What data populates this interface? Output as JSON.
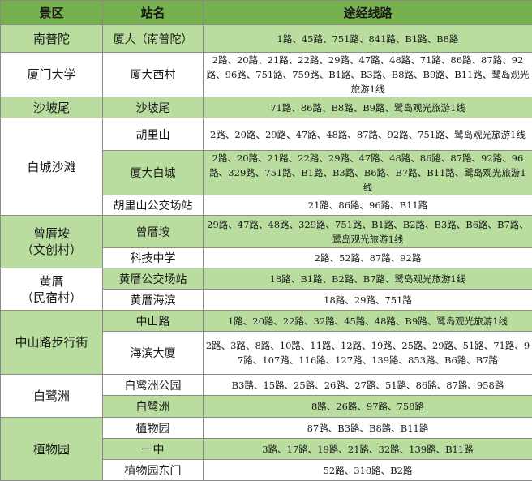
{
  "table": {
    "headers": [
      "景区",
      "站名",
      "途经线路"
    ],
    "areas": [
      {
        "name": [
          "南普陀"
        ],
        "stations": [
          {
            "name": "厦大（南普陀）",
            "routes": "1路、45路、751路、841路、B1路、B8路"
          }
        ]
      },
      {
        "name": [
          "厦门大学"
        ],
        "stations": [
          {
            "name": "厦大西村",
            "routes": "2路、20路、21路、22路、29路、47路、48路、71路、86路、87路、92路、96路、751路、759路、B1路、B3路、B8路、B9路、B11路、鹭岛观光旅游1线"
          }
        ]
      },
      {
        "name": [
          "沙坡尾"
        ],
        "stations": [
          {
            "name": "沙坡尾",
            "routes": "71路、86路、B8路、B9路、鹭岛观光旅游1线"
          }
        ]
      },
      {
        "name": [
          "白城沙滩"
        ],
        "stations": [
          {
            "name": "胡里山",
            "routes": "2路、20路、29路、47路、48路、87路、92路、751路、鹭岛观光旅游1线"
          },
          {
            "name": "厦大白城",
            "routes": "2路、20路、21路、22路、29路、47路、48路、86路、87路、92路、96路、329路、751路、B1路、B3路、B6路、B7路、B11路、鹭岛观光旅游1线"
          },
          {
            "name": "胡里山公交场站",
            "routes": "21路、86路、96路、B11路"
          }
        ]
      },
      {
        "name": [
          "曾厝垵",
          "（文创村）"
        ],
        "stations": [
          {
            "name": "曾厝垵",
            "routes": "29路、47路、48路、329路、751路、B1路、B2路、B3路、B6路、B7路、鹭岛观光旅游1线"
          },
          {
            "name": "科技中学",
            "routes": "2路、52路、87路、92路"
          }
        ]
      },
      {
        "name": [
          "黄厝",
          "（民宿村）"
        ],
        "stations": [
          {
            "name": "黄厝公交场站",
            "routes": "18路、B1路、B2路、B7路、鹭岛观光旅游1线"
          },
          {
            "name": "黄厝海滨",
            "routes": "18路、29路、751路"
          }
        ]
      },
      {
        "name": [
          "中山路步行街"
        ],
        "stations": [
          {
            "name": "中山路",
            "routes": "1路、20路、22路、32路、45路、48路、B9路、鹭岛观光旅游1线"
          },
          {
            "name": "海滨大厦",
            "routes": "2路、3路、8路、10路、11路、12路、19路、25路、29路、51路、71路、97路、107路、116路、127路、139路、853路、B6路、B7路"
          }
        ]
      },
      {
        "name": [
          "白鹭洲"
        ],
        "stations": [
          {
            "name": "白鹭洲公园",
            "routes": "B3路、15路、25路、26路、27路、51路、86路、87路、958路"
          },
          {
            "name": "白鹭洲",
            "routes": "8路、26路、97路、758路"
          }
        ]
      },
      {
        "name": [
          "植物园"
        ],
        "stations": [
          {
            "name": "植物园",
            "routes": "87路、B3路、B8路、B11路"
          },
          {
            "name": "一中",
            "routes": "3路、17路、19路、21路、32路、139路、B11路"
          },
          {
            "name": "植物园东门",
            "routes": "52路、318路、B2路"
          }
        ]
      }
    ]
  }
}
